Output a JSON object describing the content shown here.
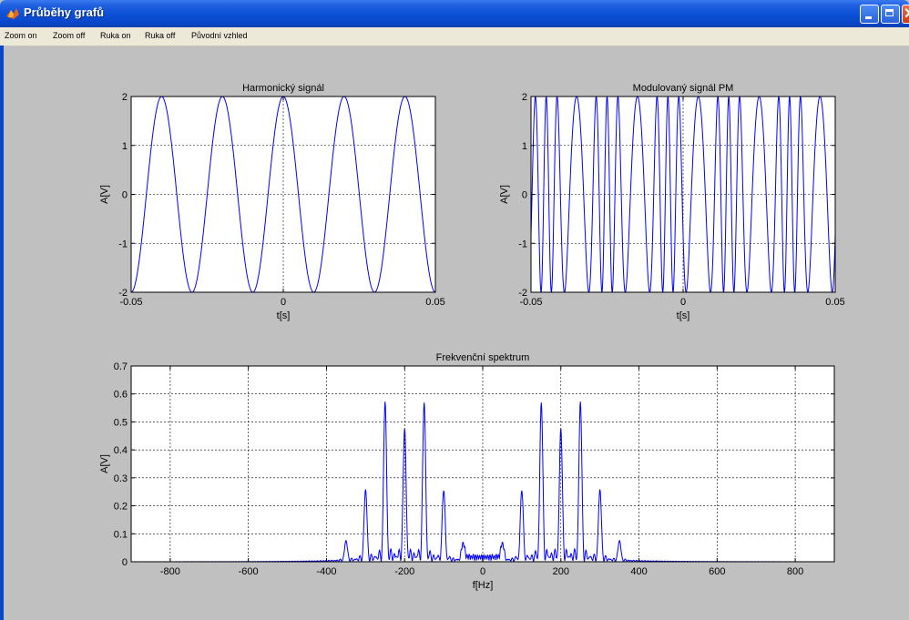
{
  "window": {
    "title": "Průběhy grafů",
    "icon": "matlab-icon"
  },
  "menu": [
    "Zoom on",
    "Zoom off",
    "Ruka on",
    "Ruka off",
    "Původní vzhled"
  ],
  "colors": {
    "line": "#0000ff",
    "background": "#c0c0c0",
    "title_bar": "#0a46c8"
  },
  "chart_data": [
    {
      "type": "line",
      "title": "Harmonický signál",
      "xlabel": "t[s]",
      "ylabel": "A[V]",
      "xlim": [
        -0.05,
        0.05
      ],
      "ylim": [
        -2,
        2
      ],
      "xticks": [
        -0.05,
        0,
        0.05
      ],
      "xtick_labels": [
        "-0.05",
        "0",
        "0.05"
      ],
      "yticks": [
        -2,
        -1,
        0,
        1,
        2
      ],
      "ytick_labels": [
        "-2",
        "-1",
        "0",
        "1",
        "2"
      ],
      "grid": true,
      "series": [
        {
          "function": "2*cos(2*pi*50*t)",
          "amplitude": 2,
          "frequency_hz": 50,
          "phase": 0
        }
      ]
    },
    {
      "type": "line",
      "title": "Modulovaný signál PM",
      "xlabel": "t[s]",
      "ylabel": "A[V]",
      "xlim": [
        -0.05,
        0.05
      ],
      "ylim": [
        -2,
        2
      ],
      "xticks": [
        -0.05,
        0,
        0.05
      ],
      "xtick_labels": [
        "-0.05",
        "0",
        "0.05"
      ],
      "yticks": [
        -2,
        -1,
        0,
        1,
        2
      ],
      "ytick_labels": [
        "-2",
        "-1",
        "0",
        "1",
        "2"
      ],
      "grid": true,
      "series": [
        {
          "function": "2*cos(2*pi*200*t + 2*cos(2*pi*50*t))",
          "amplitude": 2,
          "carrier_hz": 200,
          "modulating_hz": 50,
          "modulation_index": 2
        }
      ]
    },
    {
      "type": "line",
      "title": "Frekvenční spektrum",
      "xlabel": "f[Hz]",
      "ylabel": "A[V]",
      "xlim": [
        -900,
        900
      ],
      "ylim": [
        0,
        0.7
      ],
      "xticks": [
        -800,
        -600,
        -400,
        -200,
        0,
        200,
        400,
        600,
        800
      ],
      "xtick_labels": [
        "-800",
        "-600",
        "-400",
        "-200",
        "0",
        "200",
        "400",
        "600",
        "800"
      ],
      "yticks": [
        0,
        0.1,
        0.2,
        0.3,
        0.4,
        0.5,
        0.6,
        0.7
      ],
      "ytick_labels": [
        "0",
        "0.1",
        "0.2",
        "0.3",
        "0.4",
        "0.5",
        "0.6",
        "0.7"
      ],
      "grid": true,
      "peaks": {
        "f": [
          -350,
          -300,
          -250,
          -200,
          -150,
          -100,
          -50,
          50,
          100,
          150,
          200,
          250,
          300,
          350
        ],
        "a": [
          0.07,
          0.25,
          0.56,
          0.46,
          0.56,
          0.25,
          0.05,
          0.05,
          0.25,
          0.56,
          0.46,
          0.56,
          0.25,
          0.07
        ]
      }
    }
  ]
}
